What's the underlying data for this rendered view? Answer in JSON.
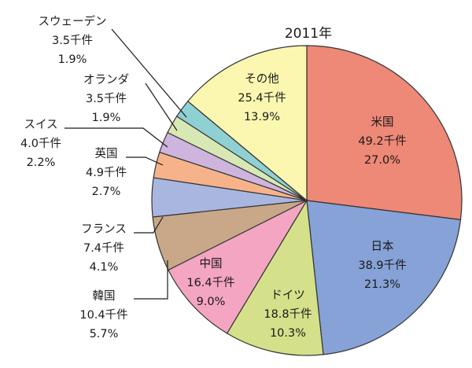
{
  "chart_data": {
    "type": "pie",
    "title": "2011年",
    "unit": "千件",
    "slices": [
      {
        "name": "米国",
        "value": 49.2,
        "value_label": "49.2千件",
        "percent_label": "27.0%",
        "color": "#ee8877"
      },
      {
        "name": "日本",
        "value": 38.9,
        "value_label": "38.9千件",
        "percent_label": "21.3%",
        "color": "#86a2d6"
      },
      {
        "name": "ドイツ",
        "value": 18.8,
        "value_label": "18.8千件",
        "percent_label": "10.3%",
        "color": "#d5e18a"
      },
      {
        "name": "中国",
        "value": 16.4,
        "value_label": "16.4千件",
        "percent_label": "9.0%",
        "color": "#f4a5c2"
      },
      {
        "name": "韓国",
        "value": 10.4,
        "value_label": "10.4千件",
        "percent_label": "5.7%",
        "color": "#c8a888"
      },
      {
        "name": "フランス",
        "value": 7.4,
        "value_label": "7.4千件",
        "percent_label": "4.1%",
        "color": "#a9b6e0"
      },
      {
        "name": "英国",
        "value": 4.9,
        "value_label": "4.9千件",
        "percent_label": "2.7%",
        "color": "#f6b38a"
      },
      {
        "name": "スイス",
        "value": 4.0,
        "value_label": "4.0千件",
        "percent_label": "2.2%",
        "color": "#cdb5dd"
      },
      {
        "name": "オランダ",
        "value": 3.5,
        "value_label": "3.5千件",
        "percent_label": "1.9%",
        "color": "#d8e8b4"
      },
      {
        "name": "スウェーデン",
        "value": 3.5,
        "value_label": "3.5千件",
        "percent_label": "1.9%",
        "color": "#8fd0d3"
      },
      {
        "name": "その他",
        "value": 25.4,
        "value_label": "25.4千件",
        "percent_label": "13.9%",
        "color": "#fbf7b0"
      }
    ]
  }
}
